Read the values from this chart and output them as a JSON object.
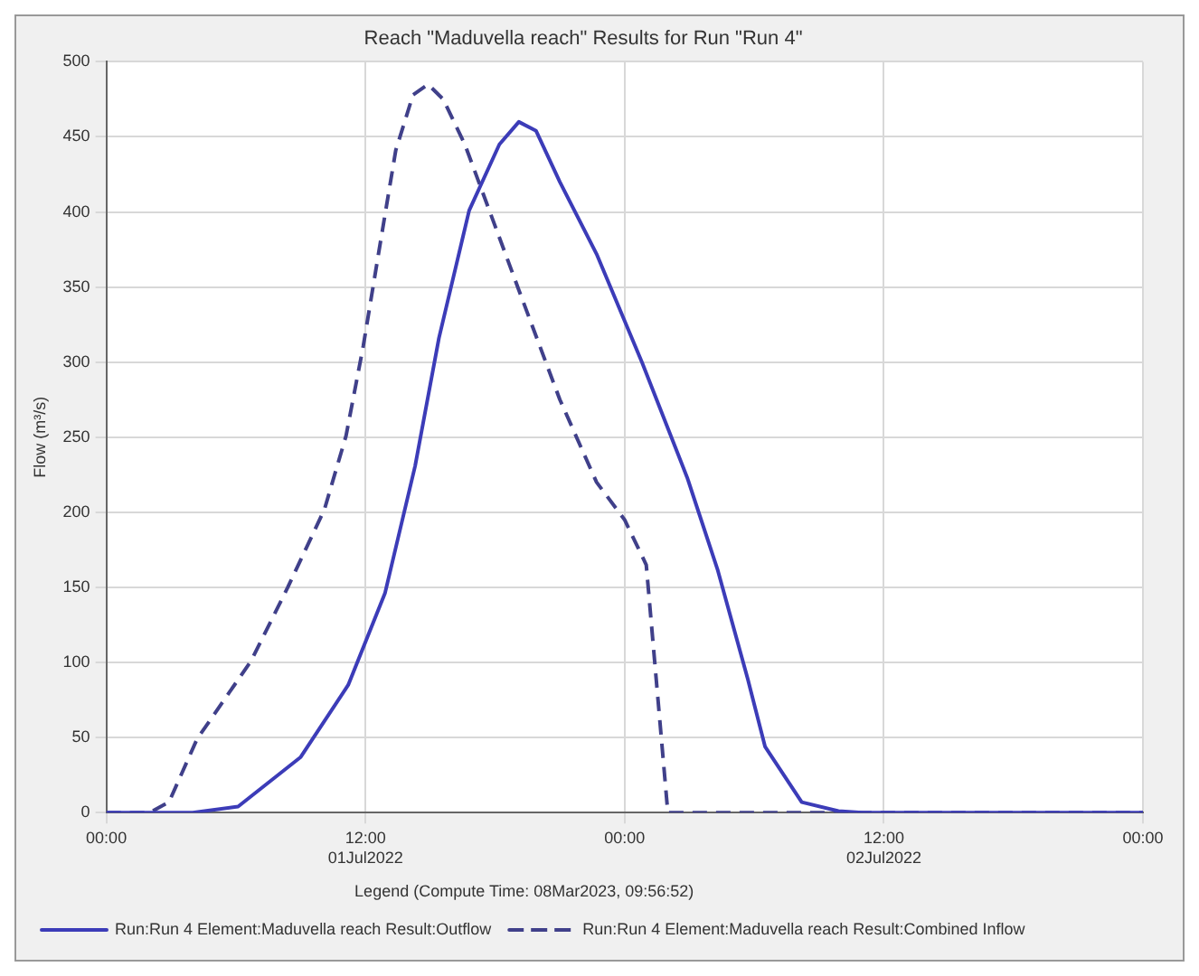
{
  "chart_data": {
    "type": "line",
    "title": "Reach \"Maduvella reach\" Results for Run \"Run 4\"",
    "ylabel": "Flow (m³/s)",
    "legend_title": "Legend (Compute Time: 08Mar2023, 09:56:52)",
    "xlim": [
      "2022-07-01T00:00",
      "2022-07-03T00:00"
    ],
    "xticks": [
      {
        "value": "2022-07-01T00:00",
        "label": "00:00"
      },
      {
        "value": "2022-07-01T12:00",
        "label": "12:00\n01Jul2022"
      },
      {
        "value": "2022-07-02T00:00",
        "label": "00:00"
      },
      {
        "value": "2022-07-02T12:00",
        "label": "12:00\n02Jul2022"
      },
      {
        "value": "2022-07-03T00:00",
        "label": "00:00"
      }
    ],
    "ylim": [
      0,
      500
    ],
    "yticks": [
      0,
      50,
      100,
      150,
      200,
      250,
      300,
      350,
      400,
      450,
      500
    ],
    "grid": true,
    "legend": "bottom",
    "marker": "none",
    "series": [
      {
        "name": "Run:Run 4 Element:Maduvella reach Result:Outflow",
        "color": "#3c3cb8",
        "line_style": "solid",
        "x": [
          "2022-07-01T00:00",
          "2022-07-01T04:00",
          "2022-07-01T06:06",
          "2022-07-01T09:00",
          "2022-07-01T11:12",
          "2022-07-01T12:54",
          "2022-07-01T14:18",
          "2022-07-01T15:24",
          "2022-07-01T16:48",
          "2022-07-01T18:12",
          "2022-07-01T19:06",
          "2022-07-01T19:54",
          "2022-07-01T21:00",
          "2022-07-01T22:42",
          "2022-07-02T00:48",
          "2022-07-02T02:54",
          "2022-07-02T04:18",
          "2022-07-02T05:42",
          "2022-07-02T06:30",
          "2022-07-02T08:12",
          "2022-07-02T09:54",
          "2022-07-02T11:00",
          "2022-07-03T00:00"
        ],
        "values": [
          0,
          0,
          4,
          37,
          85,
          146,
          231,
          316,
          401,
          445,
          460,
          454,
          420,
          372,
          300,
          223,
          162,
          89,
          44,
          7,
          1,
          0,
          0
        ]
      },
      {
        "name": "Run:Run 4 Element:Maduvella reach Result:Combined Inflow",
        "color": "#40408a",
        "line_style": "dashed",
        "x": [
          "2022-07-01T00:00",
          "2022-07-01T02:00",
          "2022-07-01T02:54",
          "2022-07-01T04:12",
          "2022-07-01T06:42",
          "2022-07-01T08:24",
          "2022-07-01T10:06",
          "2022-07-01T11:06",
          "2022-07-01T11:54",
          "2022-07-01T12:36",
          "2022-07-01T13:24",
          "2022-07-01T14:12",
          "2022-07-01T14:54",
          "2022-07-01T15:36",
          "2022-07-01T16:36",
          "2022-07-01T19:06",
          "2022-07-01T21:00",
          "2022-07-01T22:42",
          "2022-07-02T00:00",
          "2022-07-02T01:00",
          "2022-07-02T02:00",
          "2022-07-03T00:00"
        ],
        "values": [
          0,
          0,
          7,
          49,
          101,
          150,
          202,
          251,
          311,
          372,
          441,
          478,
          485,
          475,
          445,
          348,
          275,
          220,
          195,
          165,
          0,
          0
        ]
      }
    ]
  }
}
